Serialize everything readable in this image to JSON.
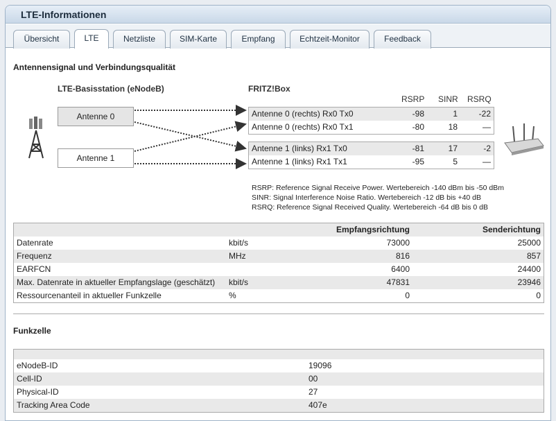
{
  "panel": {
    "title": "LTE-Informationen"
  },
  "tabs": [
    "Übersicht",
    "LTE",
    "Netzliste",
    "SIM-Karte",
    "Empfang",
    "Echtzeit-Monitor",
    "Feedback"
  ],
  "active_tab": "LTE",
  "antenna_section": {
    "title": "Antennensignal und Verbindungsqualität",
    "basestation_label": "LTE-Basisstation (eNodeB)",
    "fritzbox_label": "FRITZ!Box",
    "antennas": [
      "Antenne 0",
      "Antenne 1"
    ],
    "columns": {
      "rsrp": "RSRP",
      "sinr": "SINR",
      "rsrq": "RSRQ"
    },
    "rows": [
      {
        "name": "Antenne 0 (rechts) Rx0 Tx0",
        "rsrp": "-98",
        "sinr": "1",
        "rsrq": "-22"
      },
      {
        "name": "Antenne 0 (rechts) Rx0 Tx1",
        "rsrp": "-80",
        "sinr": "18",
        "rsrq": "—"
      },
      {
        "name": "Antenne 1 (links) Rx1 Tx0",
        "rsrp": "-81",
        "sinr": "17",
        "rsrq": "-2"
      },
      {
        "name": "Antenne 1 (links) Rx1 Tx1",
        "rsrp": "-95",
        "sinr": "5",
        "rsrq": "—"
      }
    ],
    "legend": [
      "RSRP: Reference Signal Receive Power. Wertebereich -140 dBm bis -50 dBm",
      "SINR: Signal Interference Noise Ratio. Wertebereich -12 dB bis +40 dB",
      "RSRQ: Reference Signal Received Quality. Wertebereich -64 dB bis 0 dB"
    ]
  },
  "rate_table": {
    "headers": {
      "rx": "Empfangsrichtung",
      "tx": "Senderichtung"
    },
    "rows": [
      {
        "label": "Datenrate",
        "unit": "kbit/s",
        "rx": "73000",
        "tx": "25000"
      },
      {
        "label": "Frequenz",
        "unit": "MHz",
        "rx": "816",
        "tx": "857"
      },
      {
        "label": "EARFCN",
        "unit": "",
        "rx": "6400",
        "tx": "24400"
      },
      {
        "label": "Max. Datenrate in aktueller Empfangslage (geschätzt)",
        "unit": "kbit/s",
        "rx": "47831",
        "tx": "23946"
      },
      {
        "label": "Ressourcenanteil in aktueller Funkzelle",
        "unit": "%",
        "rx": "0",
        "tx": "0"
      }
    ]
  },
  "cell_section": {
    "title": "Funkzelle",
    "rows": [
      {
        "label": "eNodeB-ID",
        "value": "19096"
      },
      {
        "label": "Cell-ID",
        "value": "00"
      },
      {
        "label": "Physical-ID",
        "value": "27"
      },
      {
        "label": "Tracking Area Code",
        "value": "407e"
      }
    ]
  }
}
